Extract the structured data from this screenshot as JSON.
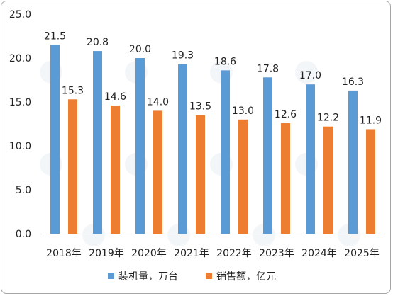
{
  "chart_data": {
    "type": "bar",
    "categories": [
      "2018年",
      "2019年",
      "2020年",
      "2021年",
      "2022年",
      "2023年",
      "2024年",
      "2025年"
    ],
    "series": [
      {
        "name": "装机量，万台",
        "values": [
          21.5,
          20.8,
          20.0,
          19.3,
          18.6,
          17.8,
          17.0,
          16.3
        ],
        "color": "#5b9bd5"
      },
      {
        "name": "销售额，亿元",
        "values": [
          15.3,
          14.6,
          14.0,
          13.5,
          13.0,
          12.6,
          12.2,
          11.9
        ],
        "color": "#ed7d31"
      }
    ],
    "yticks": [
      "0.0",
      "5.0",
      "10.0",
      "15.0",
      "20.0",
      "25.0"
    ],
    "ylim": [
      0,
      25
    ],
    "grid": false,
    "legend_position": "bottom",
    "data_labels": true,
    "title": "",
    "xlabel": "",
    "ylabel": ""
  }
}
